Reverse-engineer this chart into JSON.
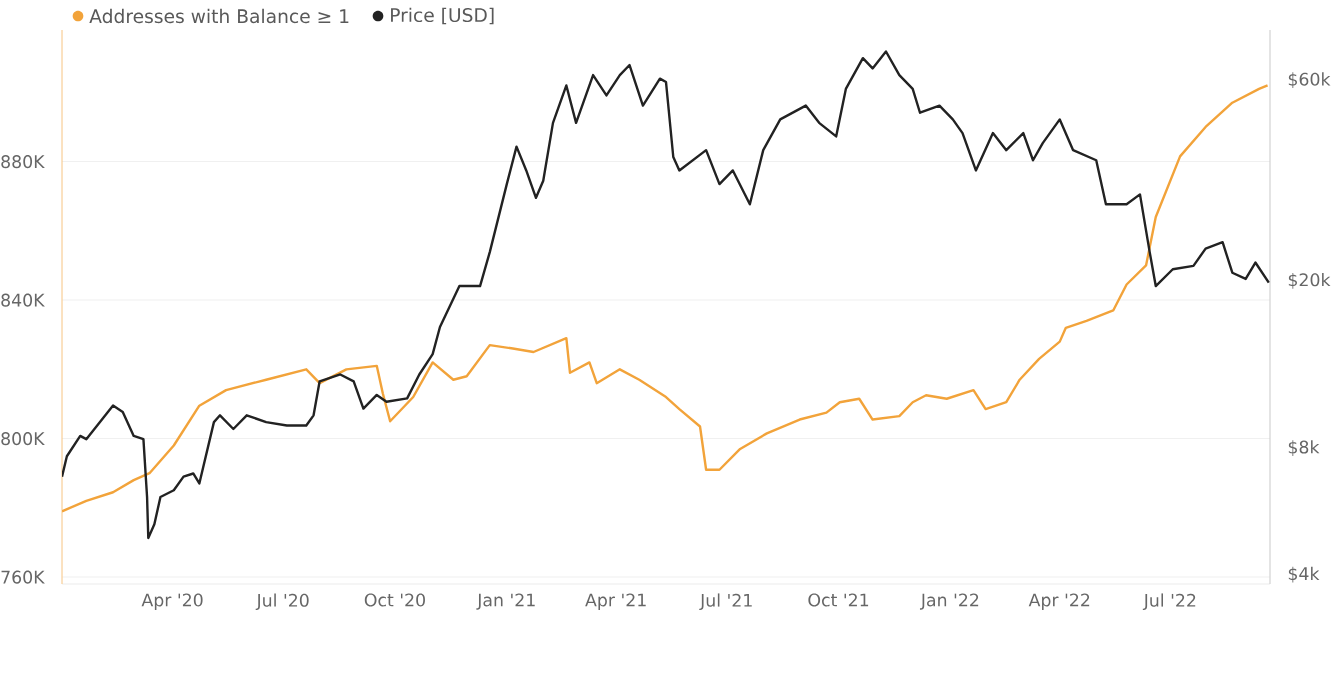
{
  "chart_data": {
    "type": "line",
    "xlim": [
      "2020-01-01",
      "2022-09-21"
    ],
    "xticks": [
      {
        "value": "2020-04-01",
        "label": "Apr '20"
      },
      {
        "value": "2020-07-01",
        "label": "Jul '20"
      },
      {
        "value": "2020-10-01",
        "label": "Oct '20"
      },
      {
        "value": "2021-01-01",
        "label": "Jan '21"
      },
      {
        "value": "2021-04-01",
        "label": "Apr '21"
      },
      {
        "value": "2021-07-01",
        "label": "Jul '21"
      },
      {
        "value": "2021-10-01",
        "label": "Oct '21"
      },
      {
        "value": "2022-01-01",
        "label": "Jan '22"
      },
      {
        "value": "2022-04-01",
        "label": "Apr '22"
      },
      {
        "value": "2022-07-01",
        "label": "Jul '22"
      }
    ],
    "ylim": [
      758,
      918
    ],
    "yticks": [
      {
        "value": 760,
        "label": "760K"
      },
      {
        "value": 800,
        "label": "800K"
      },
      {
        "value": 840,
        "label": "840K"
      },
      {
        "value": 880,
        "label": "880K"
      }
    ],
    "y2lim": [
      3800,
      79000
    ],
    "y2ticks": [
      {
        "value": 4000,
        "label": "$4k"
      },
      {
        "value": 8000,
        "label": "$8k"
      },
      {
        "value": 20000,
        "label": "$20k"
      },
      {
        "value": 60000,
        "label": "$60k"
      }
    ],
    "log": "y2",
    "grid": "y",
    "legend": "top left",
    "series": [
      {
        "name": "Addresses with Balance ≥ 1",
        "color": "#f2a33a",
        "x": [
          "2020-01-01",
          "2020-01-21",
          "2020-02-12",
          "2020-02-29",
          "2020-03-13",
          "2020-04-02",
          "2020-04-23",
          "2020-05-15",
          "2020-06-17",
          "2020-07-20",
          "2020-07-31",
          "2020-08-22",
          "2020-09-16",
          "2020-09-21",
          "2020-09-27",
          "2020-10-16",
          "2020-11-01",
          "2020-11-18",
          "2020-11-29",
          "2020-12-18",
          "2021-01-06",
          "2021-01-23",
          "2021-02-19",
          "2021-02-22",
          "2021-03-10",
          "2021-03-16",
          "2021-04-04",
          "2021-04-20",
          "2021-05-12",
          "2021-05-23",
          "2021-06-09",
          "2021-06-14",
          "2021-06-25",
          "2021-07-12",
          "2021-08-03",
          "2021-08-30",
          "2021-09-21",
          "2021-10-02",
          "2021-10-18",
          "2021-10-29",
          "2021-11-20",
          "2021-12-01",
          "2021-12-12",
          "2021-12-29",
          "2022-01-20",
          "2022-01-30",
          "2022-02-16",
          "2022-02-27",
          "2022-03-15",
          "2022-04-01",
          "2022-04-06",
          "2022-04-23",
          "2022-05-15",
          "2022-05-26",
          "2022-06-11",
          "2022-06-19",
          "2022-07-09",
          "2022-07-30",
          "2022-08-21",
          "2022-09-12",
          "2022-09-19"
        ],
        "values": [
          779,
          782,
          784.5,
          788,
          790,
          798,
          809.5,
          814,
          817,
          820,
          816,
          820,
          821,
          813,
          805,
          812,
          822,
          817,
          818,
          827,
          826,
          825,
          829,
          819,
          822,
          816,
          820,
          817,
          812,
          808.5,
          803.5,
          791,
          791,
          797,
          801.5,
          805.5,
          807.5,
          810.5,
          811.5,
          805.5,
          806.5,
          810.5,
          812.5,
          811.5,
          814,
          808.5,
          810.5,
          817,
          823,
          828,
          832,
          834,
          837,
          844.5,
          850,
          864,
          881.5,
          890,
          897,
          901,
          902
        ]
      },
      {
        "name": "Price [USD]",
        "color": "#222222",
        "axis": "y2",
        "x": [
          "2020-01-01",
          "2020-01-05",
          "2020-01-16",
          "2020-01-21",
          "2020-02-12",
          "2020-02-20",
          "2020-02-29",
          "2020-03-08",
          "2020-03-11",
          "2020-03-12",
          "2020-03-17",
          "2020-03-22",
          "2020-04-02",
          "2020-04-10",
          "2020-04-18",
          "2020-04-23",
          "2020-05-05",
          "2020-05-10",
          "2020-05-21",
          "2020-06-01",
          "2020-06-17",
          "2020-07-04",
          "2020-07-20",
          "2020-07-26",
          "2020-07-31",
          "2020-08-17",
          "2020-08-28",
          "2020-09-05",
          "2020-09-16",
          "2020-09-24",
          "2020-10-11",
          "2020-10-21",
          "2020-11-01",
          "2020-11-07",
          "2020-11-23",
          "2020-12-10",
          "2020-12-18",
          "2021-01-01",
          "2021-01-09",
          "2021-01-17",
          "2021-01-25",
          "2021-01-31",
          "2021-02-08",
          "2021-02-19",
          "2021-02-27",
          "2021-03-13",
          "2021-03-24",
          "2021-04-04",
          "2021-04-12",
          "2021-04-23",
          "2021-05-07",
          "2021-05-12",
          "2021-05-18",
          "2021-05-23",
          "2021-06-14",
          "2021-06-25",
          "2021-07-06",
          "2021-07-20",
          "2021-07-31",
          "2021-08-14",
          "2021-09-04",
          "2021-09-15",
          "2021-09-29",
          "2021-10-07",
          "2021-10-21",
          "2021-10-29",
          "2021-11-09",
          "2021-11-20",
          "2021-12-01",
          "2021-12-07",
          "2021-12-23",
          "2022-01-03",
          "2022-01-11",
          "2022-01-22",
          "2022-02-05",
          "2022-02-16",
          "2022-03-02",
          "2022-03-10",
          "2022-03-18",
          "2022-04-01",
          "2022-04-12",
          "2022-05-01",
          "2022-05-09",
          "2022-05-26",
          "2022-06-06",
          "2022-06-14",
          "2022-06-19",
          "2022-07-03",
          "2022-07-20",
          "2022-07-30",
          "2022-08-13",
          "2022-08-21",
          "2022-09-01",
          "2022-09-09",
          "2022-09-20"
        ],
        "values": [
          6840,
          7650,
          8550,
          8400,
          10100,
          9750,
          8550,
          8400,
          6120,
          4890,
          5270,
          6120,
          6350,
          6840,
          6960,
          6590,
          9220,
          9570,
          8880,
          9570,
          9220,
          9050,
          9050,
          9570,
          11530,
          11970,
          11530,
          9930,
          10700,
          10310,
          10500,
          11970,
          13380,
          15530,
          19430,
          19430,
          23400,
          33960,
          41700,
          36600,
          31500,
          34600,
          47500,
          58300,
          47500,
          61700,
          55200,
          61700,
          65200,
          52200,
          60500,
          59400,
          39400,
          36600,
          40900,
          33960,
          36600,
          30400,
          40900,
          48400,
          52200,
          47500,
          44100,
          57200,
          67700,
          64000,
          70200,
          61700,
          57200,
          50200,
          52200,
          48400,
          44900,
          36600,
          44900,
          40900,
          44900,
          38700,
          42500,
          48400,
          40900,
          38700,
          30400,
          30400,
          32100,
          23400,
          19430,
          21300,
          21700,
          23850,
          24700,
          20900,
          20200,
          22100,
          19800
        ]
      }
    ]
  }
}
